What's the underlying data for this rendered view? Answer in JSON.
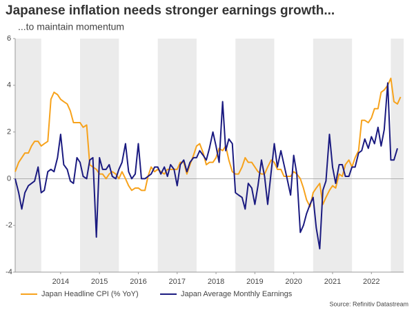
{
  "chart_data": {
    "type": "line",
    "title": "Japanese inflation needs stronger earnings growth...",
    "subtitle": "...to maintain momentum",
    "source": "Source: Refinitiv Datastream",
    "x": [
      2013.33,
      2013.42,
      2013.5,
      2013.58,
      2013.67,
      2013.75,
      2013.83,
      2013.92,
      2014,
      2014.08,
      2014.17,
      2014.25,
      2014.33,
      2014.42,
      2014.5,
      2014.58,
      2014.67,
      2014.75,
      2014.83,
      2014.92,
      2015,
      2015.08,
      2015.17,
      2015.25,
      2015.33,
      2015.42,
      2015.5,
      2015.58,
      2015.67,
      2015.75,
      2015.83,
      2015.92,
      2016,
      2016.08,
      2016.17,
      2016.25,
      2016.33,
      2016.42,
      2016.5,
      2016.58,
      2016.67,
      2016.75,
      2016.83,
      2016.92,
      2017,
      2017.08,
      2017.17,
      2017.25,
      2017.33,
      2017.42,
      2017.5,
      2017.58,
      2017.67,
      2017.75,
      2017.83,
      2017.92,
      2018,
      2018.08,
      2018.17,
      2018.25,
      2018.33,
      2018.42,
      2018.5,
      2018.58,
      2018.67,
      2018.75,
      2018.83,
      2018.92,
      2019,
      2019.08,
      2019.17,
      2019.25,
      2019.33,
      2019.42,
      2019.5,
      2019.58,
      2019.67,
      2019.75,
      2019.83,
      2019.92,
      2020,
      2020.08,
      2020.17,
      2020.25,
      2020.33,
      2020.42,
      2020.5,
      2020.58,
      2020.67,
      2020.75,
      2020.83,
      2020.92,
      2021,
      2021.08,
      2021.17,
      2021.25,
      2021.33,
      2021.42,
      2021.5,
      2021.58,
      2021.67,
      2021.75,
      2021.83,
      2021.92,
      2022,
      2022.08,
      2022.17,
      2022.25,
      2022.33,
      2022.42,
      2022.5,
      2022.58,
      2022.67,
      2022.75,
      2022.83,
      2022.92,
      2023,
      2023.08,
      2023.17,
      2023.25
    ],
    "series": [
      {
        "name": "Japan Headline CPI (% YoY)",
        "color": "#f7a21b",
        "values": [
          0.3,
          0.7,
          0.9,
          1.1,
          1.1,
          1.4,
          1.6,
          1.6,
          1.4,
          1.5,
          1.6,
          3.4,
          3.7,
          3.6,
          3.4,
          3.3,
          3.2,
          2.9,
          2.4,
          2.4,
          2.4,
          2.2,
          2.3,
          0.6,
          0.5,
          0.4,
          0.2,
          0.2,
          0.0,
          0.2,
          0.3,
          0.2,
          0.0,
          0.3,
          0.0,
          -0.3,
          -0.5,
          -0.4,
          -0.4,
          -0.5,
          -0.5,
          0.1,
          0.5,
          0.3,
          0.4,
          0.3,
          0.2,
          0.4,
          0.4,
          0.4,
          0.4,
          0.7,
          0.7,
          0.2,
          0.6,
          1.0,
          1.4,
          1.5,
          1.1,
          0.6,
          0.7,
          0.7,
          0.9,
          1.3,
          1.2,
          1.4,
          0.8,
          0.3,
          0.2,
          0.2,
          0.5,
          0.9,
          0.7,
          0.7,
          0.5,
          0.3,
          0.2,
          0.2,
          0.5,
          0.8,
          0.7,
          0.4,
          0.4,
          0.1,
          0.1,
          0.1,
          0.3,
          0.2,
          0.0,
          -0.4,
          -0.9,
          -1.2,
          -0.6,
          -0.4,
          -0.2,
          -1.1,
          -0.8,
          -0.5,
          -0.3,
          -0.4,
          0.2,
          0.1,
          0.6,
          0.8,
          0.5,
          0.9,
          1.2,
          2.5,
          2.5,
          2.4,
          2.6,
          3.0,
          3.0,
          3.7,
          3.8,
          4.0,
          4.3,
          3.3,
          3.2,
          3.5
        ]
      },
      {
        "name": "Japan Average Monthly Earnings",
        "color": "#1a1a80",
        "values": [
          0.0,
          -0.6,
          -1.3,
          -0.6,
          -0.3,
          -0.2,
          -0.1,
          0.5,
          -0.6,
          -0.5,
          0.3,
          0.4,
          0.3,
          0.9,
          1.9,
          0.6,
          0.4,
          -0.1,
          -0.2,
          0.9,
          0.7,
          0.1,
          0.0,
          0.8,
          0.9,
          -2.5,
          0.9,
          0.4,
          0.4,
          0.6,
          0.1,
          0.0,
          0.4,
          0.7,
          1.5,
          0.3,
          0.0,
          0.2,
          1.5,
          0.0,
          0.0,
          0.1,
          0.2,
          0.5,
          0.5,
          0.2,
          0.5,
          0.1,
          0.6,
          0.4,
          -0.3,
          0.6,
          0.8,
          0.3,
          0.7,
          0.9,
          0.9,
          1.2,
          1.0,
          0.8,
          1.3,
          2.0,
          1.4,
          0.7,
          3.3,
          1.2,
          1.7,
          1.5,
          -0.6,
          -0.7,
          -0.8,
          -1.3,
          -0.2,
          -0.4,
          -1.1,
          -0.3,
          0.8,
          0.1,
          -1.1,
          0.3,
          1.5,
          0.5,
          1.2,
          0.6,
          0.0,
          -0.7,
          1.0,
          0.2,
          -2.3,
          -2.0,
          -1.5,
          -1.1,
          -0.8,
          -2.1,
          -3.0,
          -0.5,
          -0.1,
          1.9,
          0.5,
          -0.2,
          0.6,
          0.6,
          0.1,
          0.1,
          0.5,
          0.5,
          1.1,
          1.2,
          1.7,
          1.3,
          1.8,
          1.5,
          2.2,
          1.4,
          2.1,
          4.1,
          0.8,
          0.8,
          1.3,
          null
        ]
      }
    ],
    "xlim": [
      2013.33,
      2023.33
    ],
    "xticks": [
      {
        "value": 2014.5,
        "label": "2014"
      },
      {
        "value": 2015.5,
        "label": "2015"
      },
      {
        "value": 2016.5,
        "label": "2016"
      },
      {
        "value": 2017.5,
        "label": "2017"
      },
      {
        "value": 2018.5,
        "label": "2018"
      },
      {
        "value": 2019.5,
        "label": "2019"
      },
      {
        "value": 2020.5,
        "label": "2020"
      },
      {
        "value": 2021.5,
        "label": "2021"
      },
      {
        "value": 2022.5,
        "label": "2022"
      }
    ],
    "ylim": [
      -4,
      6
    ],
    "yticks": [
      -4,
      -2,
      0,
      2,
      4,
      6
    ],
    "alternate_year_shading": true
  }
}
